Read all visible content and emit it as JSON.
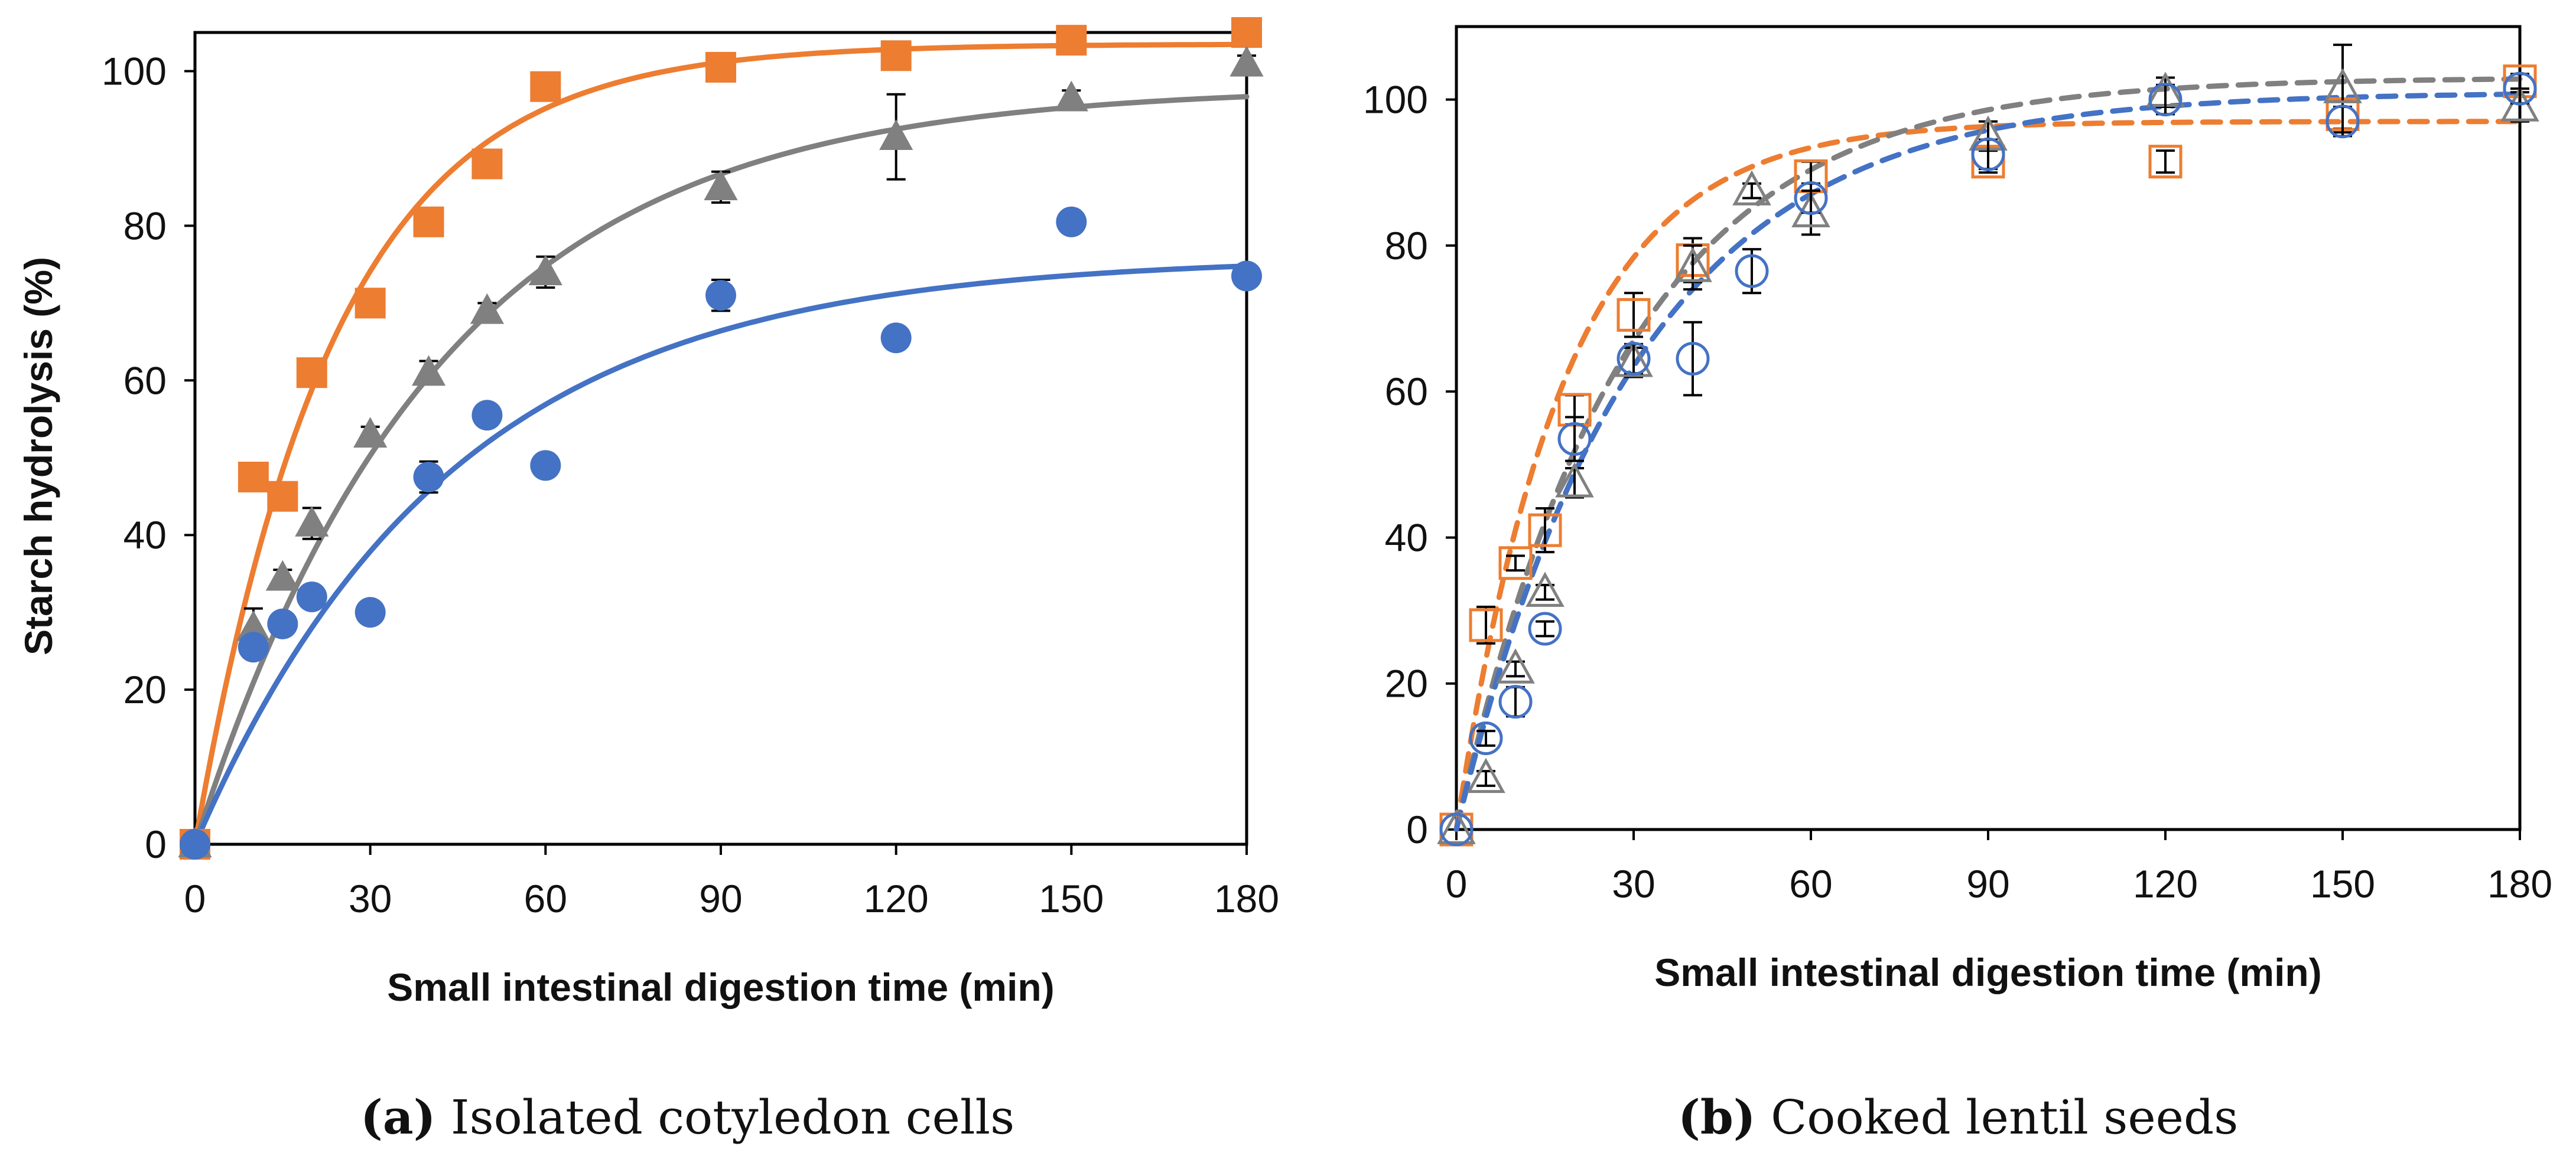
{
  "colors": {
    "orange": "#ED7D31",
    "gray": "#808080",
    "blue": "#4472C4",
    "axis": "#000000",
    "errorbar": "#000000"
  },
  "panels": [
    {
      "label": "(a)",
      "title": "Isolated cotyledon cells"
    },
    {
      "label": "(b)",
      "title": "Cooked lentil seeds"
    }
  ],
  "chart_data": [
    {
      "type": "scatter",
      "title": "(a) Isolated cotyledon cells",
      "xlabel": "Small intestinal digestion time (min)",
      "ylabel": "Starch hydrolysis (%)",
      "xlim": [
        0,
        180
      ],
      "ylim": [
        0,
        105
      ],
      "xticks": [
        0,
        30,
        60,
        90,
        120,
        150,
        180
      ],
      "yticks": [
        0,
        20,
        40,
        60,
        80,
        100
      ],
      "fit_style": "solid",
      "series": [
        {
          "name": "orange",
          "marker": "square",
          "filled": true,
          "color": "#ED7D31",
          "x": [
            0,
            10,
            15,
            20,
            30,
            40,
            50,
            60,
            90,
            120,
            150,
            180
          ],
          "y": [
            0,
            47.5,
            45,
            61,
            70,
            80.5,
            88,
            98,
            100.5,
            102,
            104,
            105
          ],
          "err": [
            0,
            0,
            0,
            0,
            0,
            0,
            0,
            0,
            0,
            0,
            0,
            0
          ],
          "fit": {
            "Cinf": 103.5,
            "k": 0.042
          }
        },
        {
          "name": "gray",
          "marker": "triangle",
          "filled": true,
          "color": "#808080",
          "x": [
            0,
            10,
            15,
            20,
            30,
            40,
            50,
            60,
            90,
            120,
            150,
            180
          ],
          "y": [
            0,
            28,
            34.5,
            41.5,
            53,
            61,
            69,
            74,
            85,
            91.5,
            96.5,
            101
          ],
          "err": [
            0,
            2.5,
            1,
            2,
            1,
            1.5,
            1,
            2,
            2,
            5.5,
            1,
            1
          ],
          "fit": {
            "Cinf": 98,
            "k": 0.024
          }
        },
        {
          "name": "blue",
          "marker": "circle",
          "filled": true,
          "color": "#4472C4",
          "x": [
            0,
            10,
            15,
            20,
            30,
            40,
            50,
            60,
            90,
            120,
            150,
            180
          ],
          "y": [
            0,
            25.5,
            28.5,
            32,
            30,
            47.5,
            55.5,
            49,
            71,
            65.5,
            80.5,
            73.5
          ],
          "err": [
            0,
            0,
            0,
            0,
            0,
            2,
            0,
            0,
            2,
            1,
            1,
            0
          ],
          "fit": {
            "Cinf": 76,
            "k": 0.023
          }
        }
      ]
    },
    {
      "type": "scatter",
      "title": "(b) Cooked lentil seeds",
      "xlabel": "Small intestinal digestion time (min)",
      "ylabel": "",
      "xlim": [
        0,
        180
      ],
      "ylim": [
        0,
        110
      ],
      "xticks": [
        0,
        30,
        60,
        90,
        120,
        150,
        180
      ],
      "yticks": [
        0,
        20,
        40,
        60,
        80,
        100
      ],
      "fit_style": "dashed",
      "series": [
        {
          "name": "orange",
          "marker": "square",
          "filled": false,
          "color": "#ED7D31",
          "x": [
            0,
            5,
            10,
            15,
            20,
            30,
            40,
            60,
            90,
            120,
            150,
            180
          ],
          "y": [
            0,
            28,
            36.5,
            41,
            57.5,
            70.5,
            78,
            89.5,
            91.5,
            91.5,
            98,
            102.5
          ],
          "err": [
            0,
            2.5,
            1,
            3,
            2,
            3,
            3,
            2,
            1.5,
            1.5,
            2,
            1
          ],
          "fit": {
            "Cinf": 97,
            "k": 0.055
          }
        },
        {
          "name": "gray",
          "marker": "triangle",
          "filled": false,
          "color": "#808080",
          "x": [
            0,
            5,
            10,
            15,
            20,
            30,
            40,
            50,
            60,
            90,
            120,
            150,
            180
          ],
          "y": [
            0,
            7,
            22,
            32.5,
            47.5,
            64,
            77,
            87.5,
            84.5,
            95,
            101,
            101.5,
            99
          ],
          "err": [
            0,
            1,
            1,
            1,
            2,
            2,
            3,
            1,
            3,
            2,
            2,
            6,
            2
          ],
          "fit": {
            "Cinf": 103,
            "k": 0.035
          }
        },
        {
          "name": "blue",
          "marker": "circle",
          "filled": false,
          "color": "#4472C4",
          "x": [
            0,
            5,
            10,
            15,
            20,
            30,
            40,
            50,
            60,
            90,
            120,
            150,
            180
          ],
          "y": [
            0,
            12.5,
            17.5,
            27.5,
            53.5,
            64.5,
            64.5,
            76.5,
            86.5,
            92.5,
            100,
            97,
            101.5
          ],
          "err": [
            0,
            1,
            2,
            1,
            3,
            2,
            5,
            3,
            2,
            2,
            2,
            2,
            2
          ],
          "fit": {
            "Cinf": 101,
            "k": 0.033
          }
        }
      ]
    }
  ]
}
